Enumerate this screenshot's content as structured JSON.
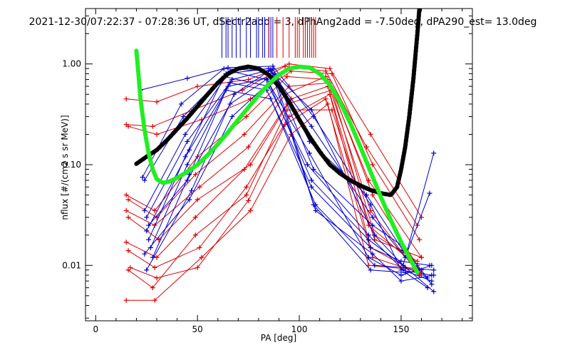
{
  "chart_data": {
    "type": "line",
    "title": "2021-12-30/07:22:37 - 07:28:36 UT, dSectr2add = 3, dPhAng2add = -7.50deg, dPA290_est=  13.0deg",
    "xlabel": "PA [deg]",
    "ylabel": "nflux [#/(cm2 s sr MeV)]",
    "xlim": [
      -5,
      185
    ],
    "ylim_log10": [
      -2.55,
      0.55
    ],
    "x_ticks": [
      {
        "value": 0,
        "label": "0"
      },
      {
        "value": 50,
        "label": "50"
      },
      {
        "value": 100,
        "label": "100"
      },
      {
        "value": 150,
        "label": "150"
      }
    ],
    "y_ticks": [
      {
        "value": 0.01,
        "label": "0.01"
      },
      {
        "value": 0.1,
        "label": "0.10"
      },
      {
        "value": 1.0,
        "label": "1.00"
      }
    ],
    "grid": false,
    "colors": {
      "blue_spectra": "#0000cc",
      "red_spectra": "#dd0000",
      "black_fit": "#000000",
      "green_fit": "#22ee22"
    },
    "pa_marks": {
      "blue": [
        62,
        64,
        65,
        67,
        69,
        71,
        74,
        76,
        79,
        80,
        82,
        83,
        85,
        86,
        87
      ],
      "red": [
        85,
        89,
        92,
        95,
        98,
        99,
        100,
        102,
        103,
        104,
        105,
        106,
        107,
        108
      ]
    },
    "black_fit": {
      "x": [
        20,
        25,
        30,
        35,
        40,
        45,
        50,
        55,
        60,
        65,
        70,
        75,
        80,
        85,
        90,
        95,
        100,
        105,
        110,
        115,
        120,
        125,
        130,
        135,
        140,
        145,
        148,
        150,
        152,
        154,
        156,
        158,
        159
      ],
      "y": [
        0.102,
        0.12,
        0.14,
        0.175,
        0.225,
        0.29,
        0.38,
        0.5,
        0.65,
        0.8,
        0.9,
        0.94,
        0.9,
        0.78,
        0.6,
        0.42,
        0.28,
        0.19,
        0.135,
        0.1,
        0.082,
        0.07,
        0.062,
        0.056,
        0.052,
        0.05,
        0.06,
        0.09,
        0.15,
        0.3,
        0.7,
        2.0,
        3.6
      ]
    },
    "green_fit": {
      "x": [
        20,
        21,
        22,
        24,
        26,
        28,
        30,
        33,
        36,
        40,
        45,
        50,
        55,
        60,
        65,
        70,
        75,
        80,
        85,
        90,
        95,
        100,
        105,
        110,
        115,
        120,
        125,
        130,
        135,
        140,
        145,
        150,
        155,
        158
      ],
      "y": [
        1.35,
        0.8,
        0.45,
        0.22,
        0.13,
        0.09,
        0.072,
        0.066,
        0.068,
        0.074,
        0.085,
        0.1,
        0.125,
        0.16,
        0.21,
        0.28,
        0.37,
        0.49,
        0.63,
        0.78,
        0.9,
        0.94,
        0.92,
        0.8,
        0.62,
        0.42,
        0.26,
        0.15,
        0.085,
        0.048,
        0.028,
        0.017,
        0.011,
        0.0085
      ]
    },
    "blue_series": [
      {
        "x": [
          22,
          45,
          65,
          87,
          107,
          135,
          150,
          165
        ],
        "y": [
          0.55,
          0.72,
          0.92,
          0.95,
          0.3,
          0.04,
          0.009,
          0.008
        ]
      },
      {
        "x": [
          23,
          42,
          63,
          86,
          106,
          136,
          152,
          164
        ],
        "y": [
          0.075,
          0.4,
          0.9,
          0.85,
          0.24,
          0.03,
          0.012,
          0.052
        ]
      },
      {
        "x": [
          24,
          43,
          64,
          85,
          106,
          137,
          151,
          166
        ],
        "y": [
          0.07,
          0.3,
          0.8,
          0.9,
          0.35,
          0.02,
          0.01,
          0.13
        ]
      },
      {
        "x": [
          24,
          44,
          66,
          84,
          105,
          134,
          150,
          165
        ],
        "y": [
          0.035,
          0.2,
          0.85,
          0.7,
          0.13,
          0.012,
          0.008,
          0.01
        ]
      },
      {
        "x": [
          25,
          45,
          67,
          86,
          107,
          135,
          152,
          163
        ],
        "y": [
          0.03,
          0.17,
          0.7,
          0.88,
          0.04,
          0.009,
          0.0085,
          0.006
        ]
      },
      {
        "x": [
          25,
          46,
          65,
          88,
          108,
          136,
          150,
          166
        ],
        "y": [
          0.022,
          0.14,
          0.6,
          0.75,
          0.035,
          0.013,
          0.007,
          0.008
        ]
      },
      {
        "x": [
          26,
          44,
          63,
          85,
          104,
          134,
          151,
          165
        ],
        "y": [
          0.018,
          0.12,
          0.75,
          0.6,
          0.1,
          0.02,
          0.009,
          0.007
        ]
      },
      {
        "x": [
          27,
          45,
          66,
          84,
          106,
          135,
          150,
          164
        ],
        "y": [
          0.015,
          0.1,
          0.65,
          0.55,
          0.06,
          0.015,
          0.011,
          0.01
        ]
      },
      {
        "x": [
          28,
          46,
          64,
          86,
          108,
          137,
          152,
          166
        ],
        "y": [
          0.012,
          0.08,
          0.55,
          0.45,
          0.04,
          0.01,
          0.0095,
          0.009
        ]
      },
      {
        "x": [
          25,
          47,
          68,
          87,
          105,
          133,
          151,
          165
        ],
        "y": [
          0.009,
          0.055,
          0.5,
          0.9,
          0.17,
          0.05,
          0.014,
          0.0065
        ]
      },
      {
        "x": [
          26,
          45,
          66,
          88,
          107,
          136,
          150,
          163
        ],
        "y": [
          0.025,
          0.07,
          0.4,
          0.8,
          0.09,
          0.025,
          0.016,
          0.0075
        ]
      },
      {
        "x": [
          24,
          46,
          67,
          85,
          106,
          134,
          151,
          166
        ],
        "y": [
          0.013,
          0.045,
          0.3,
          0.65,
          0.07,
          0.018,
          0.01,
          0.0055
        ]
      }
    ],
    "red_series": [
      {
        "x": [
          15,
          30,
          50,
          75,
          95,
          115,
          135,
          160
        ],
        "y": [
          0.45,
          0.42,
          0.6,
          0.7,
          1.0,
          0.9,
          0.2,
          0.03
        ]
      },
      {
        "x": [
          15,
          28,
          48,
          72,
          93,
          113,
          133,
          158
        ],
        "y": [
          0.25,
          0.24,
          0.35,
          0.55,
          0.95,
          0.85,
          0.15,
          0.025
        ]
      },
      {
        "x": [
          16,
          30,
          52,
          76,
          96,
          116,
          136,
          159
        ],
        "y": [
          0.24,
          0.2,
          0.28,
          0.45,
          0.85,
          0.8,
          0.1,
          0.018
        ]
      },
      {
        "x": [
          15,
          29,
          50,
          74,
          94,
          114,
          134,
          160
        ],
        "y": [
          0.05,
          0.035,
          0.12,
          0.3,
          0.75,
          0.7,
          0.07,
          0.012
        ]
      },
      {
        "x": [
          16,
          30,
          49,
          73,
          95,
          115,
          136,
          158
        ],
        "y": [
          0.045,
          0.03,
          0.08,
          0.2,
          0.6,
          0.65,
          0.05,
          0.01
        ]
      },
      {
        "x": [
          15,
          29,
          51,
          75,
          93,
          113,
          135,
          159
        ],
        "y": [
          0.035,
          0.025,
          0.06,
          0.15,
          0.5,
          0.75,
          0.035,
          0.008
        ]
      },
      {
        "x": [
          16,
          31,
          50,
          76,
          96,
          114,
          134,
          160
        ],
        "y": [
          0.03,
          0.018,
          0.045,
          0.1,
          0.45,
          0.6,
          0.025,
          0.009
        ]
      },
      {
        "x": [
          15,
          30,
          49,
          73,
          94,
          116,
          137,
          158
        ],
        "y": [
          0.017,
          0.012,
          0.03,
          0.09,
          0.4,
          0.55,
          0.02,
          0.011
        ]
      },
      {
        "x": [
          16,
          29,
          51,
          74,
          95,
          115,
          135,
          160
        ],
        "y": [
          0.014,
          0.0095,
          0.015,
          0.06,
          0.3,
          0.5,
          0.015,
          0.008
        ]
      },
      {
        "x": [
          17,
          30,
          50,
          75,
          93,
          113,
          136,
          159
        ],
        "y": [
          0.0095,
          0.0075,
          0.0095,
          0.044,
          0.25,
          0.45,
          0.012,
          0.0085
        ]
      },
      {
        "x": [
          15,
          29,
          52,
          76,
          96,
          114,
          134,
          158
        ],
        "y": [
          0.0045,
          0.0045,
          0.012,
          0.035,
          0.2,
          0.4,
          0.01,
          0.009
        ]
      },
      {
        "x": [
          16,
          28,
          49,
          74,
          94,
          116,
          137,
          160
        ],
        "y": [
          0.009,
          0.006,
          0.02,
          0.05,
          0.35,
          0.35,
          0.018,
          0.012
        ]
      }
    ]
  }
}
